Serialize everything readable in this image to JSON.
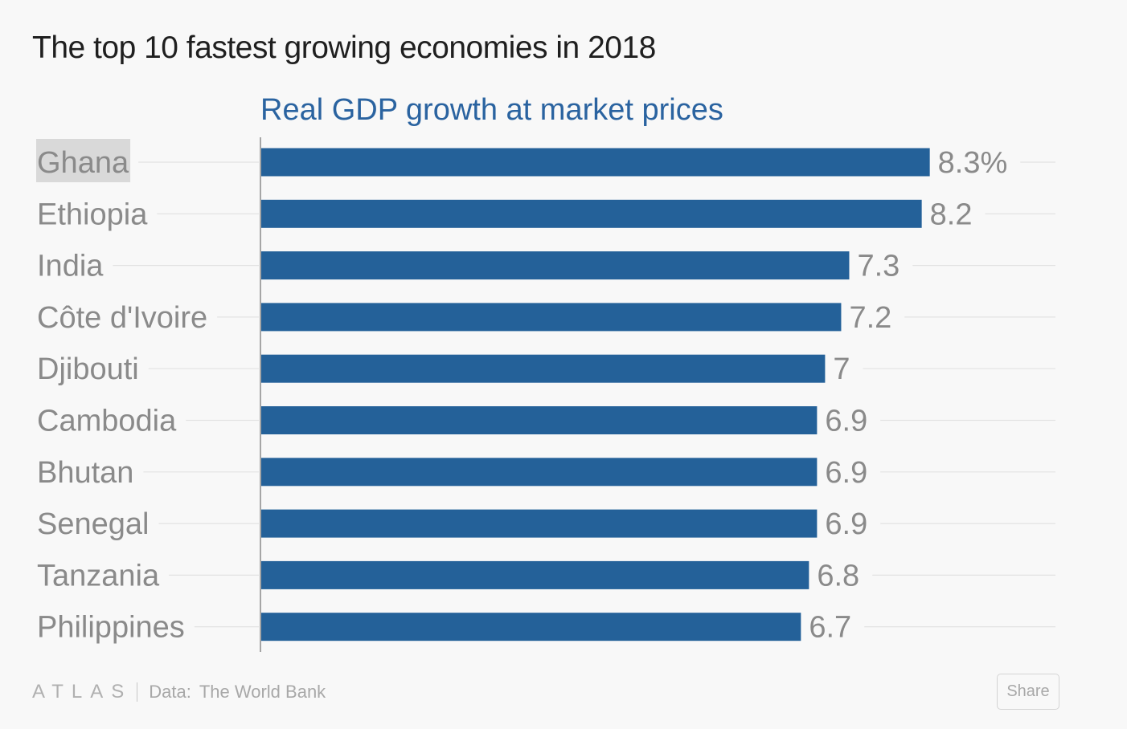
{
  "title": "The top 10 fastest growing economies in 2018",
  "chart_data": {
    "type": "bar",
    "orientation": "horizontal",
    "title": "The top 10 fastest growing economies in 2018",
    "subtitle": "Real GDP growth at market prices",
    "categories": [
      "Ghana",
      "Ethiopia",
      "India",
      "Côte d'Ivoire",
      "Djibouti",
      "Cambodia",
      "Bhutan",
      "Senegal",
      "Tanzania",
      "Philippines"
    ],
    "values": [
      8.3,
      8.2,
      7.3,
      7.2,
      7,
      6.9,
      6.9,
      6.9,
      6.8,
      6.7
    ],
    "value_labels": [
      "8.3%",
      "8.2",
      "7.3",
      "7.2",
      "7",
      "6.9",
      "6.9",
      "6.9",
      "6.8",
      "6.7"
    ],
    "highlighted_category": "Ghana",
    "xlim": [
      0,
      10
    ],
    "xlabel": "",
    "ylabel": "",
    "grid": true,
    "colors": {
      "bar": "#246199",
      "highlight_bg": "#d9d9d9"
    }
  },
  "footer": {
    "logo": "ATLAS",
    "source_label": "Data:",
    "source_name": "The World Bank",
    "share_label": "Share"
  }
}
